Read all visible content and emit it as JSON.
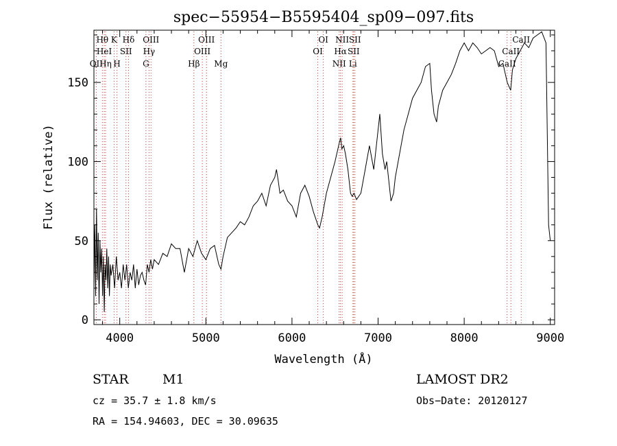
{
  "chart_data": {
    "type": "line",
    "title": "spec−55954−B5595404_sp09−097.fits",
    "xlabel": "Wavelength (Å)",
    "ylabel": "Flux (relative)",
    "xlim": [
      3700,
      9050
    ],
    "ylim": [
      -3,
      183
    ],
    "xticks": [
      4000,
      5000,
      6000,
      7000,
      8000,
      9000
    ],
    "yticks": [
      0,
      50,
      100,
      150
    ],
    "grid": false,
    "series": [
      {
        "x": [
          3700,
          3710,
          3720,
          3730,
          3740,
          3750,
          3760,
          3770,
          3780,
          3790,
          3800,
          3810,
          3820,
          3830,
          3840,
          3850,
          3860,
          3870,
          3880,
          3890,
          3900,
          3920,
          3940,
          3960,
          3980,
          4000,
          4020,
          4040,
          4060,
          4080,
          4100,
          4120,
          4140,
          4160,
          4180,
          4200,
          4220,
          4240,
          4260,
          4280,
          4300,
          4320,
          4340,
          4360,
          4380,
          4400,
          4450,
          4500,
          4550,
          4600,
          4650,
          4700,
          4750,
          4800,
          4850,
          4900,
          4950,
          5000,
          5050,
          5100,
          5150,
          5175,
          5200,
          5250,
          5300,
          5350,
          5400,
          5450,
          5500,
          5550,
          5600,
          5650,
          5700,
          5750,
          5800,
          5820,
          5840,
          5860,
          5900,
          5950,
          6000,
          6050,
          6100,
          6150,
          6200,
          6250,
          6300,
          6320,
          6350,
          6400,
          6450,
          6500,
          6550,
          6565,
          6580,
          6600,
          6620,
          6650,
          6680,
          6700,
          6720,
          6750,
          6800,
          6850,
          6900,
          6950,
          7000,
          7020,
          7050,
          7080,
          7100,
          7120,
          7150,
          7180,
          7200,
          7250,
          7300,
          7350,
          7400,
          7450,
          7500,
          7550,
          7600,
          7620,
          7650,
          7680,
          7700,
          7750,
          7800,
          7850,
          7900,
          7950,
          8000,
          8050,
          8100,
          8150,
          8200,
          8250,
          8300,
          8350,
          8400,
          8450,
          8500,
          8540,
          8560,
          8600,
          8650,
          8700,
          8750,
          8800,
          8850,
          8900,
          8950,
          8980,
          9000
        ],
        "y": [
          20,
          60,
          15,
          70,
          25,
          55,
          10,
          50,
          30,
          45,
          15,
          40,
          5,
          35,
          25,
          45,
          20,
          40,
          15,
          35,
          28,
          35,
          20,
          40,
          25,
          30,
          20,
          35,
          25,
          35,
          20,
          30,
          25,
          35,
          20,
          32,
          22,
          28,
          30,
          25,
          22,
          35,
          30,
          38,
          32,
          38,
          35,
          42,
          40,
          48,
          45,
          45,
          30,
          45,
          40,
          50,
          42,
          38,
          45,
          47,
          35,
          32,
          40,
          52,
          55,
          58,
          62,
          60,
          65,
          72,
          75,
          80,
          72,
          85,
          90,
          95,
          88,
          80,
          82,
          75,
          72,
          65,
          80,
          85,
          78,
          68,
          60,
          58,
          65,
          80,
          90,
          100,
          112,
          115,
          108,
          110,
          105,
          95,
          80,
          78,
          80,
          76,
          80,
          95,
          110,
          95,
          120,
          130,
          105,
          95,
          100,
          90,
          75,
          80,
          90,
          105,
          120,
          130,
          140,
          145,
          150,
          160,
          162,
          145,
          130,
          125,
          135,
          145,
          150,
          155,
          162,
          170,
          175,
          170,
          175,
          172,
          168,
          170,
          172,
          170,
          160,
          162,
          150,
          145,
          158,
          165,
          170,
          175,
          172,
          178,
          180,
          182,
          175,
          60,
          50
        ]
      }
    ],
    "line_labels": [
      {
        "name": "OII",
        "x": 3727,
        "row": 2
      },
      {
        "name": "Hθ",
        "x": 3798,
        "row": 0
      },
      {
        "name": "HeI",
        "x": 3820,
        "row": 1
      },
      {
        "name": "Hη",
        "x": 3835,
        "row": 2
      },
      {
        "name": "K",
        "x": 3934,
        "row": 0
      },
      {
        "name": "H",
        "x": 3968,
        "row": 2
      },
      {
        "name": "SII",
        "x": 4072,
        "row": 1
      },
      {
        "name": "Hδ",
        "x": 4102,
        "row": 0
      },
      {
        "name": "OIII",
        "x": 4363,
        "row": 0
      },
      {
        "name": "Hγ",
        "x": 4340,
        "row": 1
      },
      {
        "name": "G",
        "x": 4304,
        "row": 2
      },
      {
        "name": "Hβ",
        "x": 4861,
        "row": 2
      },
      {
        "name": "OIII",
        "x": 4959,
        "row": 1
      },
      {
        "name": "OIII",
        "x": 5007,
        "row": 0
      },
      {
        "name": "Mg",
        "x": 5175,
        "row": 2
      },
      {
        "name": "OI",
        "x": 6300,
        "row": 1
      },
      {
        "name": "OI",
        "x": 6364,
        "row": 0
      },
      {
        "name": "NII",
        "x": 6548,
        "row": 2
      },
      {
        "name": "Hα",
        "x": 6563,
        "row": 1
      },
      {
        "name": "NII",
        "x": 6583,
        "row": 0
      },
      {
        "name": "SII",
        "x": 6716,
        "row": 1
      },
      {
        "name": "SII",
        "x": 6731,
        "row": 0
      },
      {
        "name": "Li",
        "x": 6708,
        "row": 2
      },
      {
        "name": "CaII",
        "x": 8498,
        "row": 2
      },
      {
        "name": "CaII",
        "x": 8542,
        "row": 1
      },
      {
        "name": "CaII",
        "x": 8662,
        "row": 0
      }
    ]
  },
  "info": {
    "object_class": "STAR",
    "subclass": "M1",
    "survey": "LAMOST DR2",
    "redshift": "cz = 35.7 ± 1.8 km/s",
    "obs_date": "Obs−Date: 20120127",
    "coords": "RA = 154.94603, DEC =  30.09635"
  }
}
